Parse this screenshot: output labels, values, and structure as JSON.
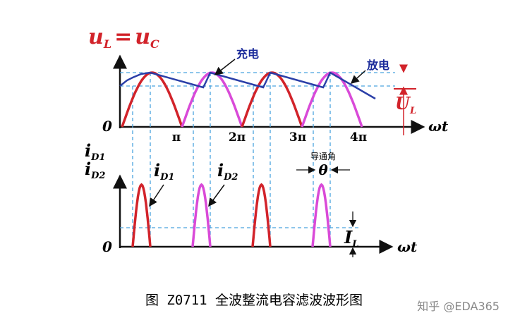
{
  "top_panel": {
    "y_label": {
      "u1": "u",
      "s1": "L",
      "eq": "=",
      "u2": "u",
      "s2": "C"
    },
    "charge": "充电",
    "discharge": "放电",
    "ripple": {
      "main": "U",
      "sub": "L"
    },
    "origin": "0",
    "x_ticks": [
      "π",
      "2π",
      "3π",
      "4π"
    ],
    "x_label": "ωt"
  },
  "bottom_panel": {
    "y_label": [
      {
        "main": "i",
        "sub": "D1"
      },
      {
        "main": "i",
        "sub": "D2"
      }
    ],
    "pulse_labels": [
      {
        "main": "i",
        "sub": "D1"
      },
      {
        "main": "i",
        "sub": "D2"
      }
    ],
    "conduction_angle": "导通角",
    "theta": "θ",
    "avg": {
      "main": "I",
      "sub": "L"
    },
    "origin": "0",
    "x_label": "ωt"
  },
  "caption": "图 Z0711 全波整流电容滤波波形图",
  "watermark": "知乎 @EDA365"
}
